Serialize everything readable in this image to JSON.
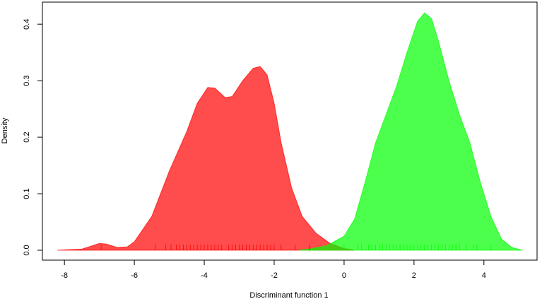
{
  "chart_data": {
    "type": "density",
    "x_label": "Discriminant function 1",
    "y_label": "Density",
    "xlim": [
      -8.63,
      5.52
    ],
    "ylim": [
      -0.0175,
      0.439
    ],
    "xticks": [
      -8,
      -6,
      -4,
      -2,
      0,
      2,
      4
    ],
    "yticks": [
      {
        "value": 0,
        "label": "0.0"
      },
      0.1,
      0.2,
      0.3,
      0.4
    ],
    "opacity": 0.7,
    "series": [
      {
        "color": "#ff0000",
        "x": [
          -8.2,
          -7.5,
          -7.2,
          -7.0,
          -6.8,
          -6.5,
          -6.2,
          -6.0,
          -5.5,
          -5.0,
          -4.5,
          -4.2,
          -3.9,
          -3.7,
          -3.4,
          -3.2,
          -2.9,
          -2.6,
          -2.4,
          -2.2,
          -2.0,
          -1.8,
          -1.5,
          -1.2,
          -0.8,
          -0.4,
          0.0,
          0.3
        ],
        "values": [
          0,
          0.002,
          0.008,
          0.012,
          0.011,
          0.005,
          0.006,
          0.015,
          0.06,
          0.14,
          0.21,
          0.26,
          0.288,
          0.287,
          0.27,
          0.272,
          0.3,
          0.322,
          0.325,
          0.31,
          0.26,
          0.19,
          0.11,
          0.06,
          0.03,
          0.012,
          0.003,
          0
        ],
        "rug": [
          -6.95,
          -5.4,
          -5.1,
          -4.95,
          -4.8,
          -4.7,
          -4.6,
          -4.5,
          -4.4,
          -4.3,
          -4.2,
          -4.1,
          -4.0,
          -3.9,
          -3.8,
          -3.7,
          -3.6,
          -3.5,
          -3.3,
          -3.2,
          -3.1,
          -3.0,
          -2.9,
          -2.8,
          -2.7,
          -2.6,
          -2.5,
          -2.4,
          -2.3,
          -2.2,
          -2.1,
          -2.0,
          -1.8,
          -1.4,
          -1.0
        ]
      },
      {
        "color": "#00ff00",
        "x": [
          -1.3,
          -1.0,
          -0.5,
          0.0,
          0.3,
          0.6,
          0.9,
          1.2,
          1.5,
          1.8,
          2.1,
          2.3,
          2.5,
          2.7,
          3.0,
          3.3,
          3.6,
          3.9,
          4.2,
          4.5,
          4.8,
          5.1
        ],
        "values": [
          0,
          0.002,
          0.008,
          0.025,
          0.055,
          0.12,
          0.19,
          0.24,
          0.29,
          0.35,
          0.405,
          0.42,
          0.41,
          0.37,
          0.3,
          0.24,
          0.19,
          0.12,
          0.06,
          0.02,
          0.005,
          0
        ],
        "rug": [
          -0.6,
          0.0,
          0.4,
          0.5,
          0.7,
          0.8,
          0.9,
          1.0,
          1.1,
          1.2,
          1.3,
          1.4,
          1.5,
          1.6,
          1.7,
          1.8,
          1.9,
          2.0,
          2.1,
          2.2,
          2.3,
          2.4,
          2.5,
          2.6,
          2.7,
          2.8,
          2.9,
          3.0,
          3.1,
          3.2,
          3.3,
          3.5,
          3.7,
          3.8,
          4.2
        ]
      }
    ]
  }
}
